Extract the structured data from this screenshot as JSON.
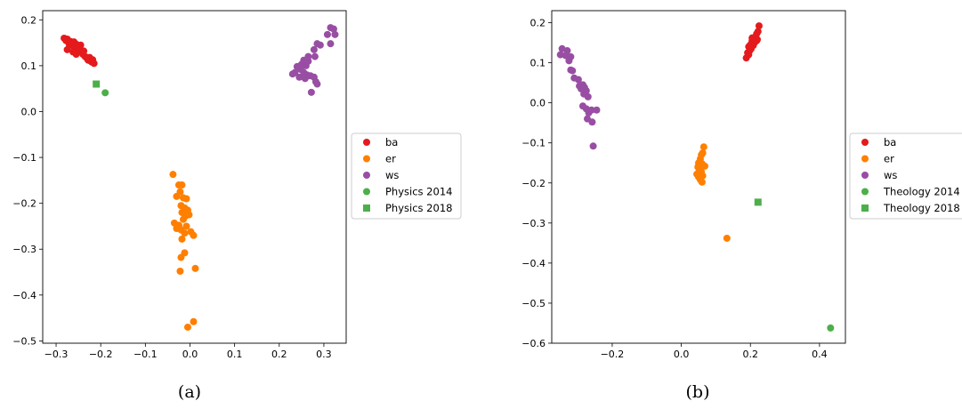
{
  "chart_data": [
    {
      "type": "scatter",
      "caption": "(a)",
      "title": "",
      "xlabel": "",
      "ylabel": "",
      "xlim": [
        -0.33,
        0.35
      ],
      "ylim": [
        -0.505,
        0.22
      ],
      "xticks": [
        -0.3,
        -0.2,
        -0.1,
        0.0,
        0.1,
        0.2,
        0.3
      ],
      "yticks": [
        0.2,
        0.1,
        0.0,
        -0.1,
        -0.2,
        -0.3,
        -0.4,
        -0.5
      ],
      "grid": false,
      "legend_position": "center-right-outside",
      "series": [
        {
          "name": "ba",
          "color": "#e41a1c",
          "marker": "circle",
          "points": [
            [
              -0.282,
              0.16
            ],
            [
              -0.278,
              0.155
            ],
            [
              -0.275,
              0.158
            ],
            [
              -0.272,
              0.15
            ],
            [
              -0.27,
              0.145
            ],
            [
              -0.268,
              0.153
            ],
            [
              -0.265,
              0.148
            ],
            [
              -0.262,
              0.143
            ],
            [
              -0.26,
              0.152
            ],
            [
              -0.258,
              0.14
            ],
            [
              -0.255,
              0.147
            ],
            [
              -0.252,
              0.138
            ],
            [
              -0.25,
              0.142
            ],
            [
              -0.248,
              0.135
            ],
            [
              -0.245,
              0.145
            ],
            [
              -0.243,
              0.13
            ],
            [
              -0.24,
              0.125
            ],
            [
              -0.238,
              0.132
            ],
            [
              -0.235,
              0.12
            ],
            [
              -0.232,
              0.118
            ],
            [
              -0.23,
              0.115
            ],
            [
              -0.228,
              0.112
            ],
            [
              -0.225,
              0.118
            ],
            [
              -0.222,
              0.11
            ],
            [
              -0.22,
              0.108
            ],
            [
              -0.218,
              0.113
            ],
            [
              -0.215,
              0.105
            ],
            [
              -0.275,
              0.135
            ],
            [
              -0.255,
              0.125
            ],
            [
              -0.262,
              0.13
            ]
          ]
        },
        {
          "name": "er",
          "color": "#ff7f00",
          "marker": "circle",
          "points": [
            [
              -0.038,
              -0.137
            ],
            [
              -0.025,
              -0.16
            ],
            [
              -0.018,
              -0.16
            ],
            [
              -0.022,
              -0.175
            ],
            [
              -0.03,
              -0.185
            ],
            [
              -0.015,
              -0.188
            ],
            [
              -0.008,
              -0.19
            ],
            [
              -0.02,
              -0.205
            ],
            [
              -0.012,
              -0.21
            ],
            [
              -0.005,
              -0.215
            ],
            [
              -0.018,
              -0.22
            ],
            [
              -0.002,
              -0.225
            ],
            [
              -0.01,
              -0.228
            ],
            [
              -0.015,
              -0.235
            ],
            [
              -0.035,
              -0.243
            ],
            [
              -0.025,
              -0.248
            ],
            [
              -0.008,
              -0.25
            ],
            [
              -0.03,
              -0.255
            ],
            [
              -0.02,
              -0.258
            ],
            [
              0.002,
              -0.262
            ],
            [
              -0.012,
              -0.265
            ],
            [
              0.008,
              -0.27
            ],
            [
              -0.018,
              -0.278
            ],
            [
              -0.012,
              -0.308
            ],
            [
              -0.02,
              -0.318
            ],
            [
              0.012,
              -0.342
            ],
            [
              -0.022,
              -0.348
            ],
            [
              0.008,
              -0.458
            ],
            [
              -0.005,
              -0.47
            ]
          ]
        },
        {
          "name": "ws",
          "color": "#984ea3",
          "marker": "circle",
          "points": [
            [
              0.315,
              0.183
            ],
            [
              0.322,
              0.18
            ],
            [
              0.325,
              0.168
            ],
            [
              0.308,
              0.168
            ],
            [
              0.292,
              0.145
            ],
            [
              0.285,
              0.148
            ],
            [
              0.315,
              0.148
            ],
            [
              0.278,
              0.135
            ],
            [
              0.265,
              0.12
            ],
            [
              0.28,
              0.12
            ],
            [
              0.255,
              0.112
            ],
            [
              0.265,
              0.11
            ],
            [
              0.25,
              0.103
            ],
            [
              0.26,
              0.1
            ],
            [
              0.24,
              0.098
            ],
            [
              0.248,
              0.092
            ],
            [
              0.235,
              0.085
            ],
            [
              0.255,
              0.085
            ],
            [
              0.262,
              0.08
            ],
            [
              0.27,
              0.078
            ],
            [
              0.245,
              0.075
            ],
            [
              0.258,
              0.072
            ],
            [
              0.278,
              0.075
            ],
            [
              0.282,
              0.065
            ],
            [
              0.285,
              0.06
            ],
            [
              0.272,
              0.042
            ],
            [
              0.23,
              0.082
            ]
          ]
        },
        {
          "name": "Physics 2014",
          "color": "#4daf4a",
          "marker": "circle",
          "points": [
            [
              -0.19,
              0.041
            ]
          ]
        },
        {
          "name": "Physics 2018",
          "color": "#4daf4a",
          "marker": "square",
          "points": [
            [
              -0.21,
              0.06
            ]
          ]
        }
      ]
    },
    {
      "type": "scatter",
      "caption": "(b)",
      "title": "",
      "xlabel": "",
      "ylabel": "",
      "xlim": [
        -0.375,
        0.475
      ],
      "ylim": [
        -0.6,
        0.23
      ],
      "xticks": [
        -0.2,
        0.0,
        0.2,
        0.4
      ],
      "yticks": [
        0.2,
        0.1,
        0.0,
        -0.1,
        -0.2,
        -0.3,
        -0.4,
        -0.5,
        -0.6
      ],
      "grid": false,
      "legend_position": "center-right-outside",
      "series": [
        {
          "name": "ba",
          "color": "#e41a1c",
          "marker": "circle",
          "points": [
            [
              0.225,
              0.192
            ],
            [
              0.222,
              0.178
            ],
            [
              0.218,
              0.172
            ],
            [
              0.215,
              0.165
            ],
            [
              0.21,
              0.16
            ],
            [
              0.22,
              0.158
            ],
            [
              0.205,
              0.155
            ],
            [
              0.212,
              0.15
            ],
            [
              0.2,
              0.145
            ],
            [
              0.208,
              0.143
            ],
            [
              0.195,
              0.14
            ],
            [
              0.202,
              0.135
            ],
            [
              0.198,
              0.13
            ],
            [
              0.192,
              0.125
            ],
            [
              0.195,
              0.12
            ],
            [
              0.188,
              0.112
            ],
            [
              0.218,
              0.155
            ],
            [
              0.205,
              0.162
            ]
          ]
        },
        {
          "name": "er",
          "color": "#ff7f00",
          "marker": "circle",
          "points": [
            [
              0.065,
              -0.11
            ],
            [
              0.062,
              -0.125
            ],
            [
              0.058,
              -0.13
            ],
            [
              0.055,
              -0.14
            ],
            [
              0.05,
              -0.15
            ],
            [
              0.06,
              -0.152
            ],
            [
              0.048,
              -0.16
            ],
            [
              0.068,
              -0.158
            ],
            [
              0.052,
              -0.168
            ],
            [
              0.058,
              -0.172
            ],
            [
              0.045,
              -0.178
            ],
            [
              0.062,
              -0.182
            ],
            [
              0.05,
              -0.185
            ],
            [
              0.055,
              -0.192
            ],
            [
              0.06,
              -0.198
            ],
            [
              0.132,
              -0.338
            ]
          ]
        },
        {
          "name": "ws",
          "color": "#984ea3",
          "marker": "circle",
          "points": [
            [
              -0.345,
              0.135
            ],
            [
              -0.33,
              0.13
            ],
            [
              -0.335,
              0.118
            ],
            [
              -0.32,
              0.115
            ],
            [
              -0.35,
              0.12
            ],
            [
              -0.325,
              0.105
            ],
            [
              -0.32,
              0.082
            ],
            [
              -0.315,
              0.08
            ],
            [
              -0.31,
              0.062
            ],
            [
              -0.298,
              0.058
            ],
            [
              -0.285,
              0.045
            ],
            [
              -0.295,
              0.042
            ],
            [
              -0.28,
              0.038
            ],
            [
              -0.29,
              0.035
            ],
            [
              -0.275,
              0.03
            ],
            [
              -0.282,
              0.022
            ],
            [
              -0.27,
              0.015
            ],
            [
              -0.285,
              -0.008
            ],
            [
              -0.275,
              -0.015
            ],
            [
              -0.26,
              -0.018
            ],
            [
              -0.245,
              -0.018
            ],
            [
              -0.268,
              -0.025
            ],
            [
              -0.272,
              -0.04
            ],
            [
              -0.258,
              -0.048
            ],
            [
              -0.255,
              -0.108
            ]
          ]
        },
        {
          "name": "Theology 2014",
          "color": "#4daf4a",
          "marker": "circle",
          "points": [
            [
              0.432,
              -0.562
            ]
          ]
        },
        {
          "name": "Theology 2018",
          "color": "#4daf4a",
          "marker": "square",
          "points": [
            [
              0.222,
              -0.248
            ]
          ]
        }
      ]
    }
  ]
}
